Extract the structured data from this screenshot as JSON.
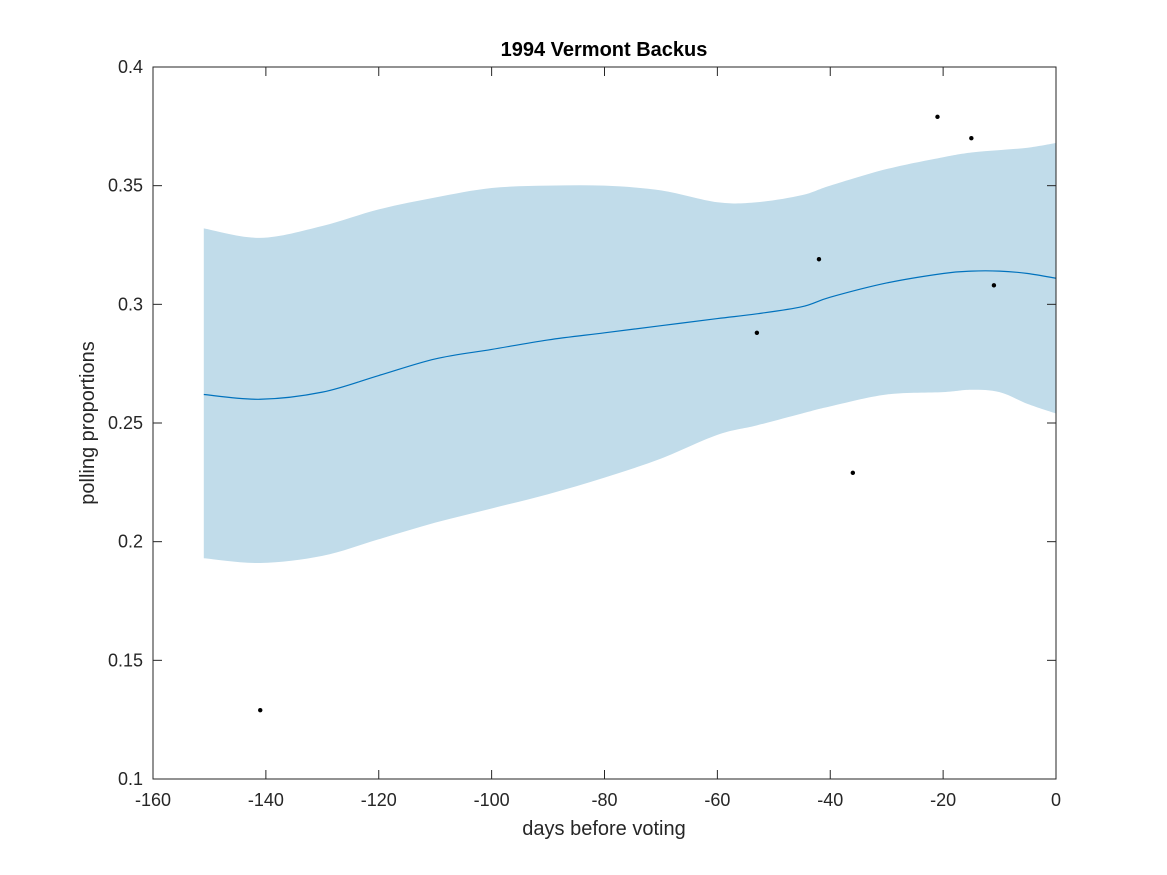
{
  "chart_data": {
    "type": "line",
    "title": "1994 Vermont Backus",
    "xlabel": "days before voting",
    "ylabel": "polling proportions",
    "xlim": [
      -160,
      0
    ],
    "ylim": [
      0.1,
      0.4
    ],
    "xticks": [
      -160,
      -140,
      -120,
      -100,
      -80,
      -60,
      -40,
      -20,
      0
    ],
    "yticks": [
      0.1,
      0.15,
      0.2,
      0.25,
      0.3,
      0.35,
      0.4
    ],
    "xtick_labels": [
      "-160",
      "-140",
      "-120",
      "-100",
      "-80",
      "-60",
      "-40",
      "-20",
      "0"
    ],
    "ytick_labels": [
      "0.1",
      "0.15",
      "0.2",
      "0.25",
      "0.3",
      "0.35",
      "0.4"
    ],
    "grid": false,
    "colors": {
      "band": "#c1dcea",
      "line": "#0072bd",
      "points": "#000000",
      "axes": "#262626"
    },
    "fit": {
      "x": [
        -151,
        -141,
        -130,
        -120,
        -110,
        -100,
        -90,
        -80,
        -70,
        -60,
        -53,
        -45,
        -40,
        -30,
        -20,
        -15,
        -10,
        -5,
        0
      ],
      "mean": [
        0.262,
        0.26,
        0.263,
        0.27,
        0.277,
        0.281,
        0.285,
        0.288,
        0.291,
        0.294,
        0.296,
        0.299,
        0.303,
        0.309,
        0.313,
        0.314,
        0.314,
        0.313,
        0.311
      ],
      "upper": [
        0.332,
        0.328,
        0.333,
        0.34,
        0.345,
        0.349,
        0.35,
        0.35,
        0.348,
        0.343,
        0.343,
        0.346,
        0.35,
        0.357,
        0.362,
        0.364,
        0.365,
        0.366,
        0.368
      ],
      "lower": [
        0.193,
        0.191,
        0.194,
        0.201,
        0.208,
        0.214,
        0.22,
        0.227,
        0.235,
        0.245,
        0.249,
        0.254,
        0.257,
        0.262,
        0.263,
        0.264,
        0.263,
        0.258,
        0.254
      ]
    },
    "points": [
      {
        "x": -141,
        "y": 0.129
      },
      {
        "x": -53,
        "y": 0.288
      },
      {
        "x": -42,
        "y": 0.319
      },
      {
        "x": -36,
        "y": 0.229
      },
      {
        "x": -21,
        "y": 0.379
      },
      {
        "x": -15,
        "y": 0.37
      },
      {
        "x": -11,
        "y": 0.308
      }
    ]
  }
}
